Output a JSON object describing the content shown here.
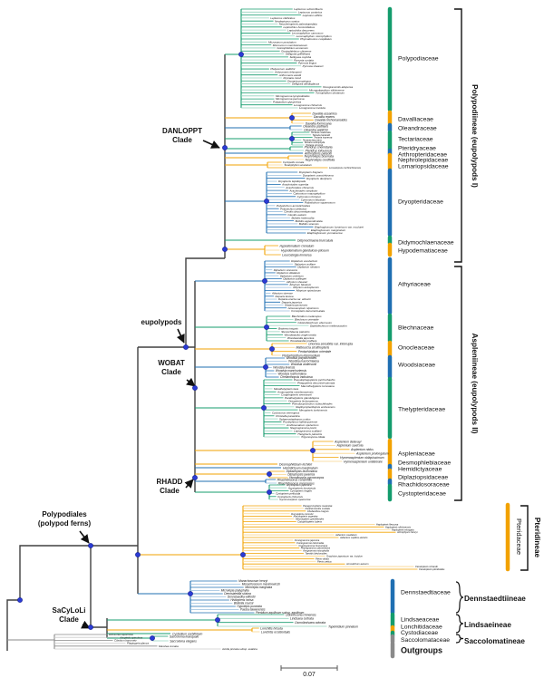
{
  "colors": {
    "green": "#149c6d",
    "blue": "#1f6fb2",
    "orange": "#f2a200",
    "gray": "#8a8a8a",
    "node_dot": "#2a3bd6",
    "backbone": "#404040"
  },
  "scale_bar": {
    "label": "0.07"
  },
  "clade_annotations": [
    {
      "id": "danloppt",
      "lines": [
        "DANLOPPT",
        "Clade"
      ]
    },
    {
      "id": "eupolypods",
      "lines": [
        "eupolypods"
      ]
    },
    {
      "id": "wobat",
      "lines": [
        "WOBAT",
        "Clade"
      ]
    },
    {
      "id": "rhadd",
      "lines": [
        "RHADD",
        "Clade"
      ]
    },
    {
      "id": "polypodiales",
      "lines": [
        "Polypodiales",
        "(polypod ferns)"
      ]
    },
    {
      "id": "sacyloli",
      "lines": [
        "SaCyLoLi",
        "Clade"
      ]
    }
  ],
  "suborders": [
    {
      "id": "polypodiineae",
      "name": "Polypodiineae (eupolypods I)"
    },
    {
      "id": "aspleniineae",
      "name": "Aspleniineae (eupolypods II)"
    },
    {
      "id": "pteridineae",
      "name": "Pteridineae"
    },
    {
      "id": "dennstaedtiineae",
      "name": "Dennstaedtiineae"
    },
    {
      "id": "lindsaeineae",
      "name": "Lindsaeineae"
    },
    {
      "id": "saccolomatineae",
      "name": "Saccolomatineae"
    }
  ],
  "families": [
    {
      "id": "polypodiaceae",
      "name": "Polypodiaceae",
      "color": "#149c6d",
      "tips": [
        "Lepisorus subconfluens",
        "Lepisorus contortus",
        "Lepisorus affinis",
        "Lepisorus clathratus",
        "Neolepisorus ovatus",
        "Neocheiropteris palmatopedata",
        "Leptochilus hemionitideus",
        "Leptochilus decurrens",
        "Lemmaphyllum carnosum",
        "Lemmaphyllum microphyllum",
        "Phymatosorus cuspidatus",
        "Microsorum punctatum",
        "Microsorum membranaceum",
        "Goniophlebium amoenum",
        "Goniophlebium chinense",
        "Selliguea griffithiana",
        "Selliguea oxyloba",
        "Pyrrosia costata",
        "Pyrrosia lingua",
        "Pyrrosia sheareri",
        "Platycerium wallichii",
        "Arthromeris lehmannii",
        "Arthromeris wardii",
        "Drynaria roosii",
        "Drynaria propinqua",
        "Selliguea albidoglauca",
        "Oreogrammitis adspersa",
        "Micropolypodium sikkimense",
        "Tomophyllum donianum",
        "Microgramma lycopodioides",
        "Microgramma percussa",
        "Polypodium glycyrrhiza",
        "Loxogramme chinensis",
        "Loxogramme involuta"
      ]
    },
    {
      "id": "davalliaceae",
      "name": "Davalliaceae",
      "color": "#f2a200",
      "tips": [
        "Davallia assamica",
        "Davallia repens",
        "Davallia trichomanoides",
        "Davallia formosana"
      ]
    },
    {
      "id": "oleandraceae",
      "name": "Oleandraceae",
      "color": "#1f6fb2",
      "tips": [
        "Oleandra pistillaris",
        "Oleandra wallichii"
      ]
    },
    {
      "id": "tectariaceae",
      "name": "Tectariaceae",
      "color": "#149c6d",
      "tips": [
        "Tectaria coadunata",
        "Tectaria harlandii",
        "Tectaria impressa",
        "Tectaria decurrens",
        "Tectaria subtriphylla",
        "Tectaria simonsii"
      ]
    },
    {
      "id": "pteridryaceae",
      "name": "Pteridryaceae",
      "color": "#149c6d",
      "tips": [
        "Pteridrys cnemidaria",
        "Pteridrys lofouensis"
      ]
    },
    {
      "id": "arthropteridaceae",
      "name": "Arthropteridaceae",
      "color": "#1f6fb2",
      "tips": [
        "Arthropteris palisotii"
      ]
    },
    {
      "id": "nephrolepidaceae",
      "name": "Nephrolepidaceae",
      "color": "#f2a200",
      "tips": [
        "Nephrolepis biserrata",
        "Nephrolepis cordifolia"
      ]
    },
    {
      "id": "lomariopsidaceae",
      "name": "Lomariopsidaceae",
      "color": "#f2a200",
      "tips": [
        "Cyclopeltis crenata",
        "Teratophyllum aculeatum",
        "Lomariopsis cochinchinensis"
      ]
    },
    {
      "id": "dryopteridaceae",
      "name": "Dryopteridaceae",
      "color": "#1f6fb2",
      "tips": [
        "Dryopteris fragrans",
        "Dryopteris crassirhizoma",
        "Dryopteris decipiens",
        "Dryopteris lepidopoda",
        "Arachniodes superba",
        "Arachniodes chinensis",
        "Arachniodes simplicior",
        "Cyrtomium macrophyllum",
        "Cyrtomium fortunei",
        "Cyrtomium falcatum",
        "Polystichum squarrosum",
        "Polystichum acrostichoides",
        "Polystichum deltodon",
        "Ctenitis decurrentipinnata",
        "Ctenitis eatonii",
        "Bolbitis heteroclita",
        "Bolbitis appendiculata",
        "Bolbitis sinensis",
        "Elaphoglossum luzonicum var. mcclurei",
        "Elaphoglossum marginatum",
        "Elaphoglossum yunnanense"
      ]
    },
    {
      "id": "didymochlaenaceae",
      "name": "Didymochlaenaceae",
      "color": "#149c6d",
      "tips": [
        "Didymochlaena truncatula"
      ]
    },
    {
      "id": "hypodematiaceae",
      "name": "Hypodematiaceae",
      "color": "#f2a200",
      "tips": [
        "Hypodematium crenatum",
        "Hypodematium glanduloso-pilosum",
        "Leucostegia immersa"
      ]
    },
    {
      "id": "athyriaceae",
      "name": "Athyriaceae",
      "color": "#1f6fb2",
      "tips": [
        "Diplazium esculentum",
        "Diplazium axillare",
        "Diplazium striatum",
        "Diplazium virescens",
        "Diplazium dilatatum",
        "Diplazium unilobum",
        "Diplazium pullingeri",
        "Athyrium sheareri",
        "Athyrium falcatum",
        "Athyrium anisopterum",
        "Athyrium spinulosum",
        "Athyrium sinense",
        "Deparia lancea",
        "Deparia erecta var. wilsonii",
        "Deparia japonica",
        "Deparia pycnosora",
        "Anisocampium niponicum",
        "Cornopteris decurrenti-alata"
      ]
    },
    {
      "id": "blechnaceae",
      "name": "Blechnaceae",
      "color": "#149c6d",
      "tips": [
        "Blechnidium melanopus",
        "Blechnum orientale",
        "Cleistoblechnum eburneum",
        "Diploblechnum melanocaulon",
        "Brainea insignis",
        "Stenochlaena palustris",
        "Woodwardia unigemmata",
        "Woodwardia japonica",
        "Woodwardia prolifera"
      ]
    },
    {
      "id": "onocleaceae",
      "name": "Onocleaceae",
      "color": "#f2a200",
      "tips": [
        "Onoclea sensibilis var. interrupta",
        "Matteuccia struthiopteris",
        "Pentarhizidium orientale",
        "Pentarhizidium intermedium"
      ]
    },
    {
      "id": "woodsiaceae",
      "name": "Woodsiaceae",
      "color": "#1f6fb2",
      "tips": [
        "Woodsia polystichoides",
        "Woodsia macrochlaena",
        "Woodsia andersonii",
        "Woodsia ilvensis",
        "Woodsia manchuriensis",
        "Woodsia rosthorniana",
        "Cheilanthopsis indusiosa"
      ]
    },
    {
      "id": "thelypteridaceae",
      "name": "Thelypteridaceae",
      "color": "#149c6d",
      "tips": [
        "Pseudophegopteris pyrrhorhachis",
        "Phegopteris decursive-pinnata",
        "Macrothelypteris torresiana",
        "Metathelypteris laxa",
        "Amauropelta noveboracensis",
        "Coryphopteris seemannii",
        "Parathelypteris glanduligera",
        "Oreopteris limbosperma",
        "Pseudocyclosorus subochthodes",
        "Glaphyropteridopsis erubescens",
        "Mesopteris tonkinensis",
        "Cyclosorus interruptus",
        "Christella parasitica",
        "Sphaerostephanos unitus",
        "Pronephrium lakhimpurense",
        "Amblovenatum opulentum",
        "Stegnogramma pozoi",
        "Leptogramma scallanii",
        "Thelypteris palustris",
        "Trigonospora ciliata"
      ]
    },
    {
      "id": "aspleniaceae",
      "name": "Aspleniaceae",
      "color": "#f2a200",
      "tips": [
        "Asplenium delavayi",
        "Asplenium saxicola",
        "Asplenium nidus",
        "Asplenium prolongatum",
        "Hymenasplenium obliquissimum",
        "Hymenasplenium unilaterale"
      ]
    },
    {
      "id": "desmophlebiaceae",
      "name": "Desmophlebiaceae",
      "color": "#f2a200",
      "tips": [
        "Desmophlebium lechleri"
      ]
    },
    {
      "id": "hemidictyaceae",
      "name": "Hemidictyaceae",
      "color": "#1f6fb2",
      "tips": [
        "Hemidictyum marginatum"
      ]
    },
    {
      "id": "diplaziopsidaceae",
      "name": "Diplaziopsidaceae",
      "color": "#f2a200",
      "tips": [
        "Diplaziopsis brunoniana",
        "Diplaziopsis javanica",
        "Homalosorus pycnocarpos"
      ]
    },
    {
      "id": "rhachidosoraceae",
      "name": "Rhachidosoraceae",
      "color": "#1f6fb2",
      "tips": [
        "Rhachidosorus consimilis",
        "Rhachidosorus mesosorus"
      ]
    },
    {
      "id": "cystopteridaceae",
      "name": "Cystopteridaceae",
      "color": "#149c6d",
      "tips": [
        "Acystopteris japonica",
        "Acystopteris tenuisecta",
        "Cystopteris fragilis",
        "Cystopteris pellucida",
        "Cystopteris chinensis",
        "Gymnocarpium oyamense"
      ]
    },
    {
      "id": "pteridaceae",
      "name": "Pteridaceae",
      "color": "#f2a200",
      "tips": [
        "Paragymnopteris marantae",
        "Parahemionitis cordata",
        "Cheilanthes insignis",
        "Doryopteris concolor",
        "Aleuritopteris argentea",
        "Aleuritopteris grevilleoides",
        "Calciphilopteris ludens",
        "Haplopteris flexuosa",
        "Haplopteris sikkimensis",
        "Haplopteris elongata",
        "Antrophyum henryi",
        "Adiantum caudatum",
        "Adiantum capillus-veneris",
        "Coniogramme japonica",
        "Coniogramme intermedia",
        "Cryptogramma brunoniana",
        "Pityrogramma calomelanos",
        "Anogramma microphylla",
        "Taenitis blechnoides",
        "Onychium japonicum var. lucidum",
        "Pteris vittata",
        "Pteris cretica",
        "Acrostichum aureum",
        "Ceratopteris richardii",
        "Ceratopteris pteridoides"
      ]
    },
    {
      "id": "dennstaedtiaceae",
      "name": "Dennstaedtiaceae",
      "color": "#1f6fb2",
      "tips": [
        "Monachosorum henryi",
        "Monachosorum maximowiczii",
        "Microlepia marginata",
        "Microlepia platyphylla",
        "Dennstaedtia scabra",
        "Dennstaedtia wilfordii",
        "Histiopteris incisa",
        "Blotiella coursii",
        "Hypolepis punctata",
        "Paesia taiwanensis",
        "Pteridium aquilinum subsp. aquilinum"
      ]
    },
    {
      "id": "lindsaeaceae",
      "name": "Lindsaeaceae",
      "color": "#149c6d",
      "tips": [
        "Odontosoria chinensis",
        "Lindsaea cultrata",
        "Osmolindsaea odorata",
        "Tapeinidium pinnatum"
      ]
    },
    {
      "id": "lonchitidaceae",
      "name": "Lonchitidaceae",
      "color": "#f2a200",
      "tips": [
        "Lonchitis hirsuta",
        "Lonchitis occidentalis"
      ]
    },
    {
      "id": "cystodiaceae",
      "name": "Cystodiaceae",
      "color": "#149c6d",
      "tips": [
        "Cystodium sorbifolium"
      ]
    },
    {
      "id": "saccolomataceae",
      "name": "Saccolomataceae",
      "color": "#8a8a8a",
      "tips": [
        "Saccoloma inaequale",
        "Saccoloma elegans"
      ]
    },
    {
      "id": "outgroups",
      "name": "Outgroups",
      "color": "#8a8a8a",
      "tips": [
        "Dicksonia squarrosa",
        "Alsophila spinulosa",
        "Cibotium barometz",
        "Plagiogyria glauca",
        "Marsilea crenata",
        "Azolla pinnata subsp. asiatica"
      ]
    }
  ]
}
